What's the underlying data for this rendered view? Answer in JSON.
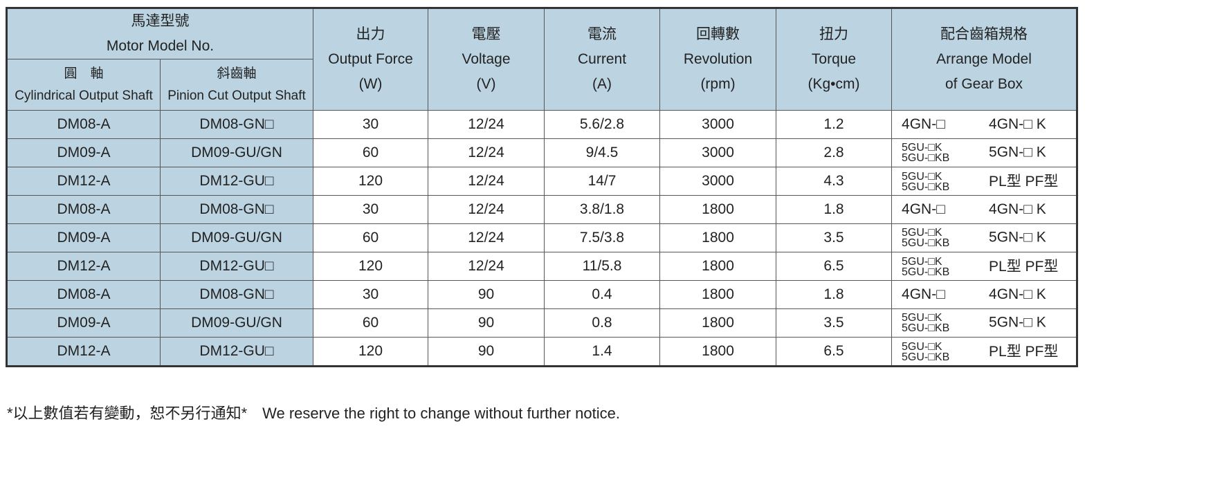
{
  "header": {
    "model": {
      "zh": "馬達型號",
      "en": "Motor Model No."
    },
    "cyl": {
      "zh": "圓　軸",
      "en": "Cylindrical Output Shaft"
    },
    "pin": {
      "zh": "斜齒軸",
      "en": "Pinion Cut Output Shaft"
    },
    "output": {
      "zh": "出力",
      "en": "Output Force",
      "unit": "(W)"
    },
    "voltage": {
      "zh": "電壓",
      "en": "Voltage",
      "unit": "(V)"
    },
    "current": {
      "zh": "電流",
      "en": "Current",
      "unit": "(A)"
    },
    "rev": {
      "zh": "回轉數",
      "en": "Revolution",
      "unit": "(rpm)"
    },
    "torque": {
      "zh": "扭力",
      "en": "Torque",
      "unit": "(Kg•cm)"
    },
    "gear": {
      "zh": "配合齒箱規格",
      "en": "Arrange Model",
      "en2": "of Gear Box"
    }
  },
  "rows": [
    {
      "cyl": "DM08-A",
      "pin": "DM08-GN□",
      "w": "30",
      "v": "12/24",
      "a": "5.6/2.8",
      "rpm": "3000",
      "t": "1.2",
      "g1": "4GN-□",
      "g1b": "",
      "g2": "4GN-□ K"
    },
    {
      "cyl": "DM09-A",
      "pin": "DM09-GU/GN",
      "w": "60",
      "v": "12/24",
      "a": "9/4.5",
      "rpm": "3000",
      "t": "2.8",
      "g1": "5GU-□K",
      "g1b": "5GU-□KB",
      "g2": "5GN-□ K"
    },
    {
      "cyl": "DM12-A",
      "pin": "DM12-GU□",
      "w": "120",
      "v": "12/24",
      "a": "14/7",
      "rpm": "3000",
      "t": "4.3",
      "g1": "5GU-□K",
      "g1b": "5GU-□KB",
      "g2": "PL型 PF型"
    },
    {
      "cyl": "DM08-A",
      "pin": "DM08-GN□",
      "w": "30",
      "v": "12/24",
      "a": "3.8/1.8",
      "rpm": "1800",
      "t": "1.8",
      "g1": "4GN-□",
      "g1b": "",
      "g2": "4GN-□ K"
    },
    {
      "cyl": "DM09-A",
      "pin": "DM09-GU/GN",
      "w": "60",
      "v": "12/24",
      "a": "7.5/3.8",
      "rpm": "1800",
      "t": "3.5",
      "g1": "5GU-□K",
      "g1b": "5GU-□KB",
      "g2": "5GN-□ K"
    },
    {
      "cyl": "DM12-A",
      "pin": "DM12-GU□",
      "w": "120",
      "v": "12/24",
      "a": "11/5.8",
      "rpm": "1800",
      "t": "6.5",
      "g1": "5GU-□K",
      "g1b": "5GU-□KB",
      "g2": "PL型 PF型"
    },
    {
      "cyl": "DM08-A",
      "pin": "DM08-GN□",
      "w": "30",
      "v": "90",
      "a": "0.4",
      "rpm": "1800",
      "t": "1.8",
      "g1": "4GN-□",
      "g1b": "",
      "g2": "4GN-□ K"
    },
    {
      "cyl": "DM09-A",
      "pin": "DM09-GU/GN",
      "w": "60",
      "v": "90",
      "a": "0.8",
      "rpm": "1800",
      "t": "3.5",
      "g1": "5GU-□K",
      "g1b": "5GU-□KB",
      "g2": "5GN-□ K"
    },
    {
      "cyl": "DM12-A",
      "pin": "DM12-GU□",
      "w": "120",
      "v": "90",
      "a": "1.4",
      "rpm": "1800",
      "t": "6.5",
      "g1": "5GU-□K",
      "g1b": "5GU-□KB",
      "g2": "PL型 PF型"
    }
  ],
  "note": "*以上數值若有變動，恕不另行通知*　We reserve the right to change without further notice."
}
